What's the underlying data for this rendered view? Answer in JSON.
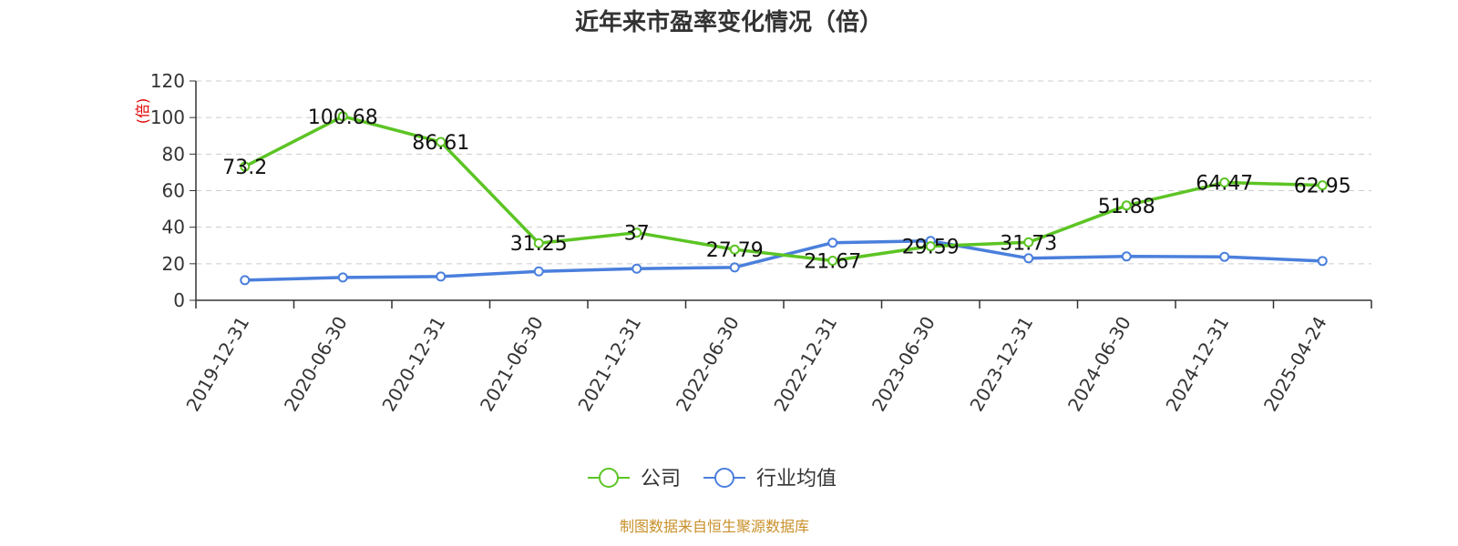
{
  "chart_data": {
    "type": "line",
    "title": "近年来市盈率变化情况（倍）",
    "ylabel": "(倍)",
    "categories": [
      "2019-12-31",
      "2020-06-30",
      "2020-12-31",
      "2021-06-30",
      "2021-12-31",
      "2022-06-30",
      "2022-12-31",
      "2023-06-30",
      "2023-12-31",
      "2024-06-30",
      "2024-12-31",
      "2025-04-24"
    ],
    "ylim": [
      0,
      120
    ],
    "yticks": [
      "0",
      "20",
      "40",
      "60",
      "80",
      "100",
      "120"
    ],
    "grid": true,
    "legend_position": "bottom",
    "series": [
      {
        "name": "公司",
        "color": "#5cc424",
        "values": [
          73.2,
          100.68,
          86.61,
          31.25,
          37,
          27.79,
          21.67,
          29.59,
          31.73,
          51.88,
          64.47,
          62.95
        ],
        "labels": [
          "73.2",
          "100.68",
          "86.61",
          "31.25",
          "37",
          "27.79",
          "21.67",
          "29.59",
          "31.73",
          "51.88",
          "64.47",
          "62.95"
        ]
      },
      {
        "name": "行业均值",
        "color": "#4a7fdc",
        "values": [
          11,
          12.5,
          13,
          15.8,
          17.3,
          18,
          31.5,
          32.5,
          23,
          24,
          23.8,
          21.5
        ]
      }
    ]
  },
  "source_note": "制图数据来自恒生聚源数据库"
}
